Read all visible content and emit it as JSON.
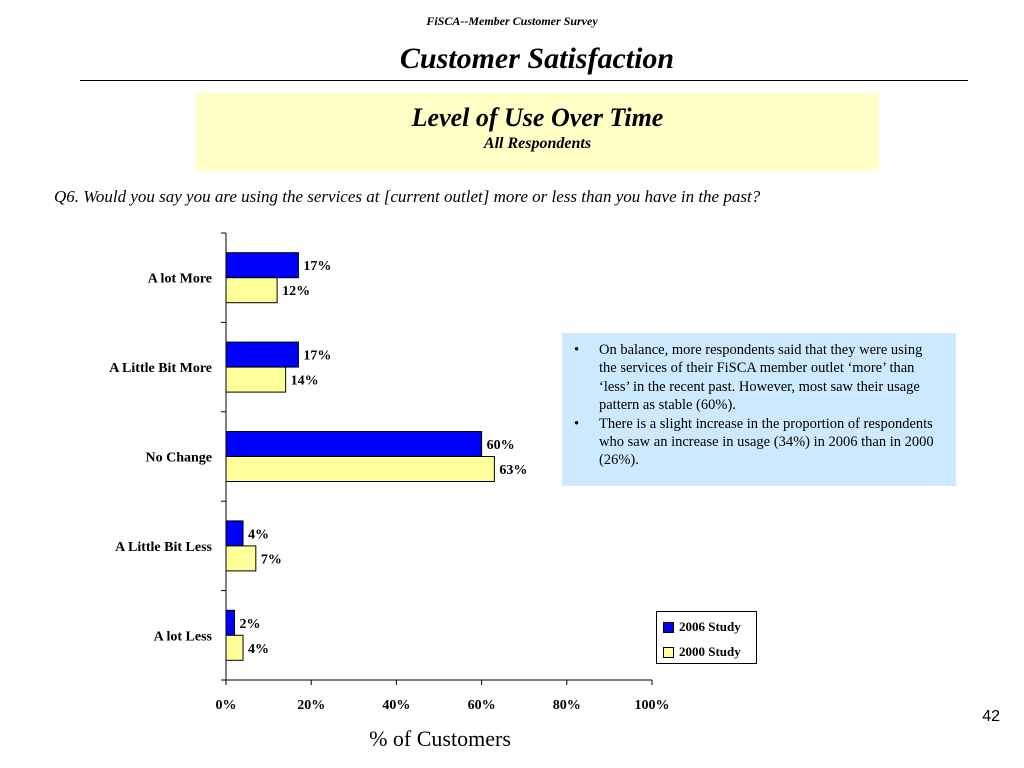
{
  "header": {
    "survey": "FiSCA--Member Customer Survey",
    "title": "Customer Satisfaction"
  },
  "subtitle": {
    "line1": "Level of Use Over Time",
    "line2": "All Respondents"
  },
  "question": "Q6.  Would you say you are using the services at [current outlet] more or less than you have in the past?",
  "notes": [
    "On balance, more respondents said that they were using the services of their FiSCA member outlet ‘more’ than ‘less’ in the recent past.  However, most saw their usage pattern as stable (60%).",
    "There is a slight increase in the proportion of respondents who saw an increase in usage (34%) in 2006 than in 2000 (26%)."
  ],
  "page_number": "42",
  "chart_data": {
    "type": "bar",
    "orientation": "horizontal",
    "categories": [
      "A lot More",
      "A Little Bit More",
      "No Change",
      "A Little Bit Less",
      "A lot Less"
    ],
    "series": [
      {
        "name": "2006 Study",
        "values": [
          17,
          17,
          60,
          4,
          2
        ],
        "labels": [
          "17%",
          "17%",
          "60%",
          "4%",
          "2%"
        ],
        "color": "#0000ff"
      },
      {
        "name": "2000 Study",
        "values": [
          12,
          14,
          63,
          7,
          4
        ],
        "labels": [
          "12%",
          "14%",
          "63%",
          "7%",
          "4%"
        ],
        "color": "#ffff99"
      }
    ],
    "xlabel": "% of Customers",
    "xlim": [
      0,
      100
    ],
    "xticks": [
      "0%",
      "20%",
      "40%",
      "60%",
      "80%",
      "100%"
    ],
    "legend_position": "bottom-right",
    "grid": false
  }
}
